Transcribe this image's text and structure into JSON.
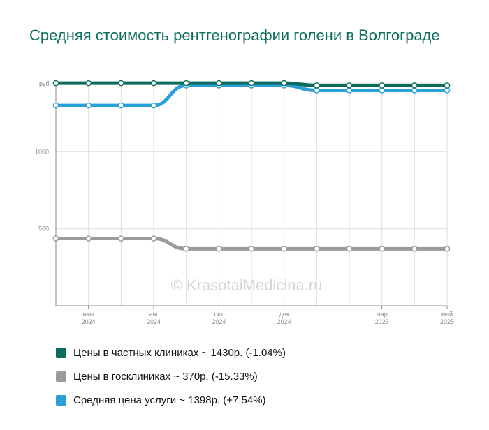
{
  "chart_data": {
    "type": "line",
    "title": "Средняя стоимость рентгенографии голени в Волгограде",
    "ylabel": "руб.",
    "ylim": [
      0,
      1450
    ],
    "yticks": [
      {
        "value": 500,
        "label": "500"
      },
      {
        "value": 1000,
        "label": "1000"
      }
    ],
    "x": [
      "2024-05",
      "2024-06",
      "2024-07",
      "2024-08",
      "2024-09",
      "2024-10",
      "2024-11",
      "2024-12",
      "2025-01",
      "2025-02",
      "2025-03",
      "2025-04",
      "2025-05"
    ],
    "xticks": [
      {
        "x": "2024-06",
        "month": "июн",
        "year": "2024"
      },
      {
        "x": "2024-08",
        "month": "авг",
        "year": "2024"
      },
      {
        "x": "2024-10",
        "month": "окт",
        "year": "2024"
      },
      {
        "x": "2024-12",
        "month": "дек",
        "year": "2024"
      },
      {
        "x": "2025-03",
        "month": "мар",
        "year": "2025"
      },
      {
        "x": "2025-05",
        "month": "май",
        "year": "2025"
      }
    ],
    "series": [
      {
        "name": "Цены в частных клиниках ~ 1430р. (-1.04%)",
        "color": "#0d6b5e",
        "values": [
          1445,
          1445,
          1445,
          1445,
          1445,
          1445,
          1445,
          1445,
          1430,
          1430,
          1430,
          1430,
          1430
        ]
      },
      {
        "name": "Цены в госклиниках ~ 370р. (-15.33%)",
        "color": "#9b9b9b",
        "values": [
          437,
          437,
          437,
          437,
          370,
          370,
          370,
          370,
          370,
          370,
          370,
          370,
          370
        ]
      },
      {
        "name": "Средняя цена услуги ~ 1398р. (+7.54%)",
        "color": "#2aa0d8",
        "values": [
          1300,
          1300,
          1300,
          1300,
          1430,
          1430,
          1430,
          1430,
          1398,
          1398,
          1398,
          1398,
          1398
        ]
      }
    ],
    "grid": true,
    "legend_position": "bottom"
  },
  "watermark": "© KrasotaiMedicina.ru"
}
